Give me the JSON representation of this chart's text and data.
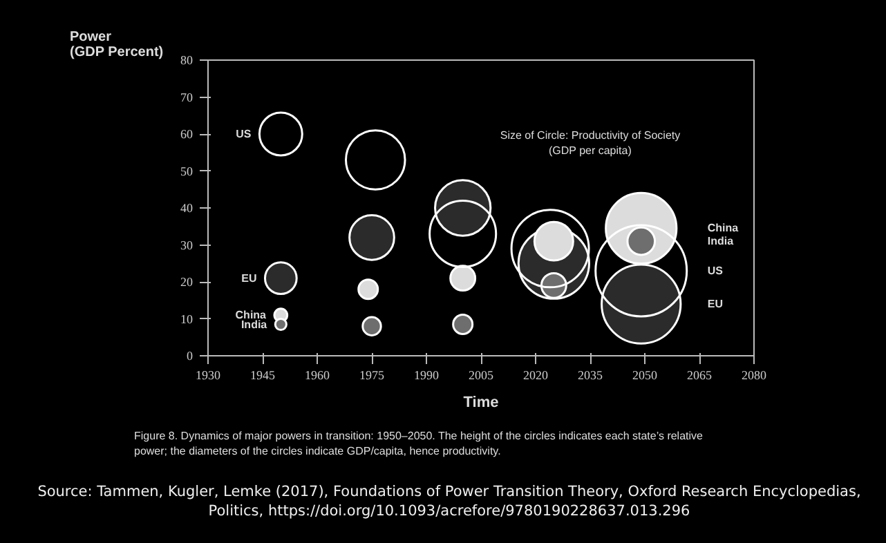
{
  "chart_data": {
    "type": "bubble",
    "xlabel": "Time",
    "ylabel": "Power\n(GDP Percent)",
    "xlim": [
      1930,
      2080
    ],
    "xticks": [
      1930,
      1945,
      1960,
      1975,
      1990,
      2005,
      2020,
      2035,
      2050,
      2065,
      2080
    ],
    "ylim": [
      0,
      80
    ],
    "yticks": [
      0,
      10,
      20,
      30,
      40,
      50,
      60,
      70,
      80
    ],
    "grid": false,
    "series": [
      {
        "name": "US",
        "color": "#ffffff",
        "x": [
          1950,
          1976,
          2000,
          2024,
          2049
        ],
        "values": [
          60,
          53,
          33,
          29,
          23
        ],
        "sizes": [
          0.22,
          0.42,
          0.53,
          0.72,
          1
        ]
      },
      {
        "name": "EU",
        "color": "#2b2b2b",
        "x": [
          1950,
          1975,
          2000,
          2025,
          2049
        ],
        "values": [
          21,
          32,
          40,
          25,
          14
        ],
        "sizes": [
          0.12,
          0.24,
          0.37,
          0.6,
          0.75
        ]
      },
      {
        "name": "China",
        "color": "#dcdcdc",
        "x": [
          1950,
          1974,
          2000,
          2025,
          2049
        ],
        "values": [
          11,
          18,
          21,
          31,
          34.5
        ],
        "sizes": [
          0.02,
          0.045,
          0.074,
          0.18,
          0.6
        ]
      },
      {
        "name": "India",
        "color": "#6e6e6e",
        "x": [
          1950,
          1975,
          2000,
          2025,
          2049
        ],
        "values": [
          8.5,
          8,
          8.5,
          19,
          31
        ],
        "sizes": [
          0.015,
          0.04,
          0.045,
          0.074,
          0.09
        ]
      }
    ],
    "annotations": [
      "Size of Circle: Productivity of Society\n(GDP per capita)",
      "Figure 8. Dynamics of major powers in transition: 1950–2050. The height of the circles indicates each state’s relative power; the diameters of the circles indicate GDP/capita, hence productivity.",
      "Source: Tammen, Kugler, Lemke (2017), Foundations of Power Transition Theory, Oxford Research Encyclopedias, Politics, https://doi.org/10.1093/acrefore/9780190228637.013.296"
    ]
  }
}
